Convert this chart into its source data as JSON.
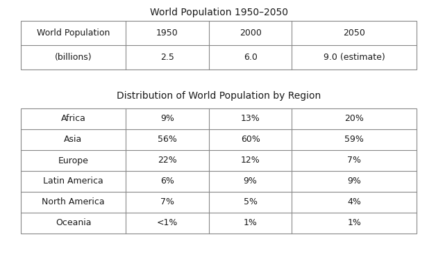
{
  "title1": "World Population 1950–2050",
  "title2": "Distribution of World Population by Region",
  "table1_headers": [
    "World Population",
    "1950",
    "2000",
    "2050"
  ],
  "table1_row": [
    "(billions)",
    "2.5",
    "6.0",
    "9.0 (estimate)"
  ],
  "table2_rows": [
    [
      "Africa",
      "9%",
      "13%",
      "20%"
    ],
    [
      "Asia",
      "56%",
      "60%",
      "59%"
    ],
    [
      "Europe",
      "22%",
      "12%",
      "7%"
    ],
    [
      "Latin America",
      "6%",
      "9%",
      "9%"
    ],
    [
      "North America",
      "7%",
      "5%",
      "4%"
    ],
    [
      "Oceania",
      "<1%",
      "1%",
      "1%"
    ]
  ],
  "bg_color": "#ffffff",
  "text_color": "#1a1a1a",
  "line_color": "#888888",
  "title_fontsize": 10,
  "cell_fontsize": 9
}
